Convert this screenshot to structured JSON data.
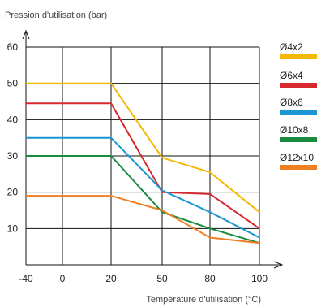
{
  "chart_data": {
    "type": "line",
    "ylabel": "Pression d'utilisation (bar)",
    "xlabel": "Température d'utilisation (°C)",
    "x_ticks": [
      "-40",
      "0",
      "20",
      "50",
      "80",
      "100"
    ],
    "y_ticks": [
      "10",
      "20",
      "30",
      "40",
      "50",
      "60"
    ],
    "ylim": [
      0,
      60
    ],
    "grid": true,
    "legend_position": "right",
    "series": [
      {
        "name": "Ø4x2",
        "color": "#f5b800",
        "x": [
          -40,
          20,
          50,
          80,
          100
        ],
        "y": [
          50,
          50,
          29.5,
          25.5,
          14.5
        ]
      },
      {
        "name": "Ø6x4",
        "color": "#d7282f",
        "x": [
          -40,
          20,
          50,
          80,
          100
        ],
        "y": [
          44.5,
          44.5,
          20,
          19.5,
          10
        ]
      },
      {
        "name": "Ø8x6",
        "color": "#1a96d4",
        "x": [
          -40,
          20,
          50,
          80,
          100
        ],
        "y": [
          35,
          35,
          20.5,
          14.5,
          7.5
        ]
      },
      {
        "name": "Ø10x8",
        "color": "#1a8a3f",
        "x": [
          -40,
          20,
          50,
          80,
          100
        ],
        "y": [
          30,
          30,
          14.5,
          10,
          6
        ]
      },
      {
        "name": "Ø12x10",
        "color": "#f07f22",
        "x": [
          -40,
          20,
          50,
          80,
          100
        ],
        "y": [
          19,
          19,
          15,
          7.5,
          6
        ]
      }
    ]
  }
}
